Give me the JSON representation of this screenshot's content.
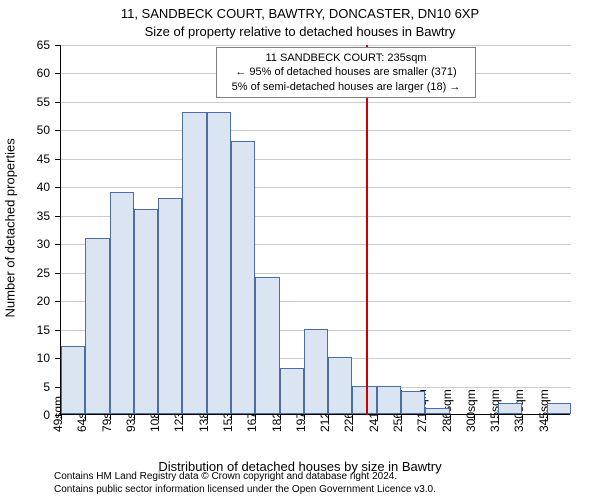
{
  "title_main": "11, SANDBECK COURT, BAWTRY, DONCASTER, DN10 6XP",
  "title_sub": "Size of property relative to detached houses in Bawtry",
  "y_axis_title": "Number of detached properties",
  "x_axis_title": "Distribution of detached houses by size in Bawtry",
  "footnote_line1": "Contains HM Land Registry data © Crown copyright and database right 2024.",
  "footnote_line2": "Contains public sector information licensed under the Open Government Licence v3.0.",
  "chart": {
    "type": "histogram",
    "ylim": [
      0,
      65
    ],
    "ytick_step": 5,
    "x_labels": [
      "49sqm",
      "64sqm",
      "79sqm",
      "93sqm",
      "108sqm",
      "123sqm",
      "138sqm",
      "153sqm",
      "167sqm",
      "182sqm",
      "197sqm",
      "212sqm",
      "226sqm",
      "241sqm",
      "256sqm",
      "271sqm",
      "286sqm",
      "300sqm",
      "315sqm",
      "330sqm",
      "345sqm"
    ],
    "values": [
      12,
      31,
      39,
      36,
      38,
      53,
      53,
      48,
      24,
      8,
      15,
      10,
      5,
      5,
      4,
      1,
      0,
      0,
      2,
      0,
      2
    ],
    "bar_fill": "#dbe5f1",
    "bar_border": "#4a6fa5",
    "grid_color": "#cccccc",
    "background_color": "#ffffff",
    "reference_value": 235,
    "reference_color": "#cc0000",
    "font_family": "Arial",
    "title_fontsize": 13,
    "axis_label_fontsize": 13,
    "tick_fontsize": 12,
    "annotation_fontsize": 11
  },
  "annotation": {
    "line1": "11 SANDBECK COURT: 235sqm",
    "line2": "← 95% of detached houses are smaller (371)",
    "line3": "5% of semi-detached houses are larger (18) →",
    "border_color": "#808080",
    "background": "#ffffff"
  }
}
